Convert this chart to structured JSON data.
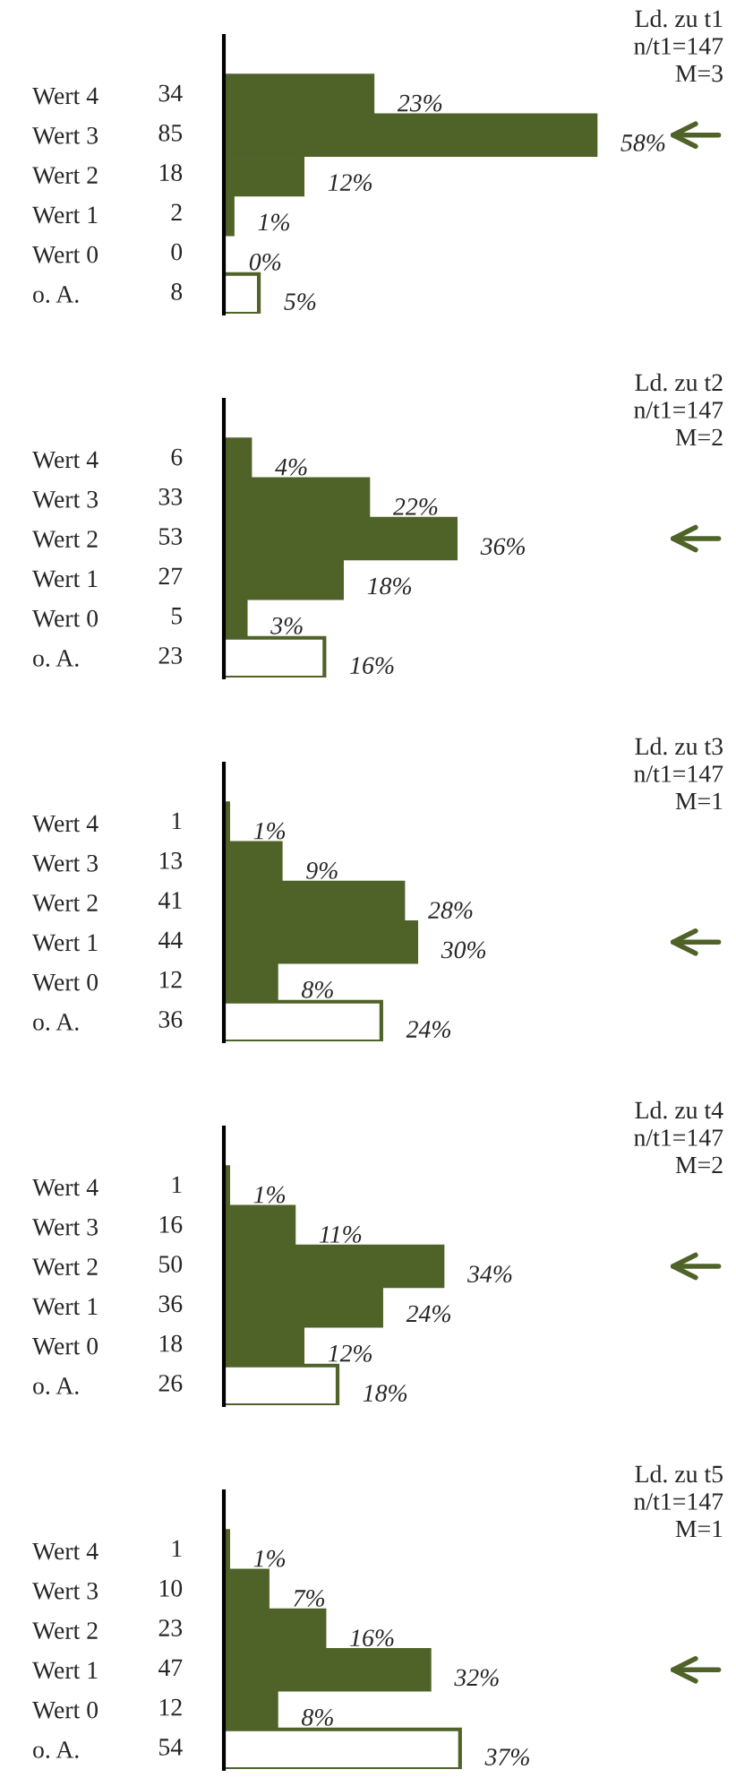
{
  "chart_data": [
    {
      "type": "bar",
      "orientation": "horizontal",
      "categories": [
        "Wert 4",
        "Wert 3",
        "Wert 2",
        "Wert 1",
        "Wert 0",
        "o. A."
      ],
      "values": [
        34,
        85,
        18,
        2,
        0,
        8
      ],
      "colors": [
        "#4f6228",
        "#4f6228",
        "#4f6228",
        "#4f6228",
        "#4f6228",
        "#ffffff"
      ],
      "tick_labels": "y",
      "data_labels": true,
      "grid": false,
      "legend": false,
      "annotations": [
        "Ld. zu t1",
        "n/t1=147",
        "M=3",
        {
          "text": "23%",
          "x": 34,
          "y": "Wert 4"
        },
        {
          "text": "58%",
          "x": 85,
          "y": "Wert 3"
        },
        {
          "text": "12%",
          "x": 18,
          "y": "Wert 2"
        },
        {
          "text": "1%",
          "x": 2,
          "y": "Wert 1"
        },
        {
          "text": "0%",
          "x": 0,
          "y": "Wert 0"
        },
        {
          "text": "5%",
          "x": 8,
          "y": "o. A."
        }
      ]
    },
    {
      "type": "bar",
      "orientation": "horizontal",
      "categories": [
        "Wert 4",
        "Wert 3",
        "Wert 2",
        "Wert 1",
        "Wert 0",
        "o. A."
      ],
      "values": [
        6,
        33,
        53,
        27,
        5,
        23
      ],
      "colors": [
        "#4f6228",
        "#4f6228",
        "#4f6228",
        "#4f6228",
        "#4f6228",
        "#ffffff"
      ],
      "tick_labels": "y",
      "data_labels": true,
      "grid": false,
      "legend": false,
      "annotations": [
        "Ld. zu t2",
        "n/t1=147",
        "M=2",
        {
          "text": "4%",
          "x": 6,
          "y": "Wert 4"
        },
        {
          "text": "22%",
          "x": 33,
          "y": "Wert 3"
        },
        {
          "text": "36%",
          "x": 53,
          "y": "Wert 2"
        },
        {
          "text": "18%",
          "x": 27,
          "y": "Wert 1"
        },
        {
          "text": "3%",
          "x": 5,
          "y": "Wert 0"
        },
        {
          "text": "16%",
          "x": 23,
          "y": "o. A."
        }
      ]
    },
    {
      "type": "bar",
      "orientation": "horizontal",
      "categories": [
        "Wert 4",
        "Wert 3",
        "Wert 2",
        "Wert 1",
        "Wert 0",
        "o. A."
      ],
      "values": [
        1,
        13,
        41,
        44,
        12,
        36
      ],
      "colors": [
        "#4f6228",
        "#4f6228",
        "#4f6228",
        "#4f6228",
        "#4f6228",
        "#ffffff"
      ],
      "tick_labels": "y",
      "data_labels": true,
      "grid": false,
      "legend": false,
      "annotations": [
        "Ld. zu t3",
        "n/t1=147",
        "M=1",
        {
          "text": "1%",
          "x": 1,
          "y": "Wert 4"
        },
        {
          "text": "9%",
          "x": 13,
          "y": "Wert 3"
        },
        {
          "text": "28%",
          "x": 41,
          "y": "Wert 2"
        },
        {
          "text": "30%",
          "x": 44,
          "y": "Wert 1"
        },
        {
          "text": "8%",
          "x": 12,
          "y": "Wert 0"
        },
        {
          "text": "24%",
          "x": 36,
          "y": "o. A."
        }
      ]
    },
    {
      "type": "bar",
      "orientation": "horizontal",
      "categories": [
        "Wert 4",
        "Wert 3",
        "Wert 2",
        "Wert 1",
        "Wert 0",
        "o. A."
      ],
      "values": [
        1,
        16,
        50,
        36,
        18,
        26
      ],
      "colors": [
        "#4f6228",
        "#4f6228",
        "#4f6228",
        "#4f6228",
        "#4f6228",
        "#ffffff"
      ],
      "tick_labels": "y",
      "data_labels": true,
      "grid": false,
      "legend": false,
      "annotations": [
        "Ld. zu t4",
        "n/t1=147",
        "M=2",
        {
          "text": "1%",
          "x": 1,
          "y": "Wert 4"
        },
        {
          "text": "11%",
          "x": 16,
          "y": "Wert 3"
        },
        {
          "text": "34%",
          "x": 50,
          "y": "Wert 2"
        },
        {
          "text": "24%",
          "x": 36,
          "y": "Wert 1"
        },
        {
          "text": "12%",
          "x": 18,
          "y": "Wert 0"
        },
        {
          "text": "18%",
          "x": 26,
          "y": "o. A."
        }
      ]
    },
    {
      "type": "bar",
      "orientation": "horizontal",
      "categories": [
        "Wert 4",
        "Wert 3",
        "Wert 2",
        "Wert 1",
        "Wert 0",
        "o. A."
      ],
      "values": [
        1,
        10,
        23,
        47,
        12,
        54
      ],
      "colors": [
        "#4f6228",
        "#4f6228",
        "#4f6228",
        "#4f6228",
        "#4f6228",
        "#ffffff"
      ],
      "tick_labels": "y",
      "data_labels": true,
      "grid": false,
      "legend": false,
      "annotations": [
        "Ld. zu t5",
        "n/t1=147",
        "M=1",
        {
          "text": "1%",
          "x": 1,
          "y": "Wert 4"
        },
        {
          "text": "7%",
          "x": 10,
          "y": "Wert 3"
        },
        {
          "text": "16%",
          "x": 23,
          "y": "Wert 2"
        },
        {
          "text": "32%",
          "x": 47,
          "y": "Wert 1"
        },
        {
          "text": "8%",
          "x": 12,
          "y": "Wert 0"
        },
        {
          "text": "37%",
          "x": 54,
          "y": "o. A."
        }
      ]
    }
  ]
}
